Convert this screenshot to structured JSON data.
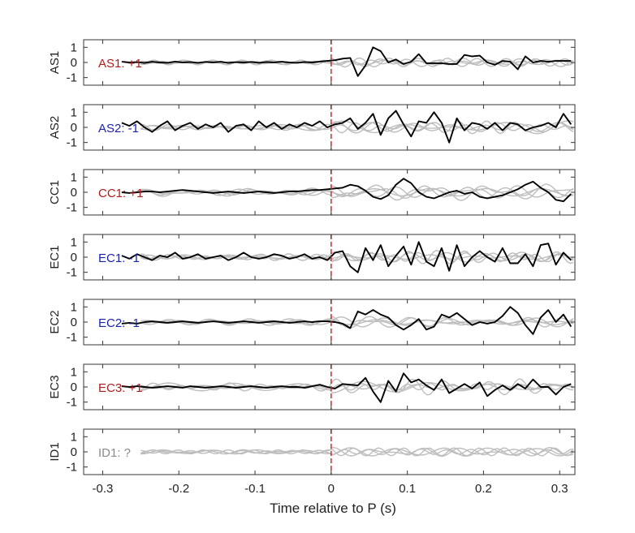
{
  "chart_data": {
    "type": "line",
    "xlabel": "Time relative to P (s)",
    "xlim": [
      -0.325,
      0.32
    ],
    "xticks": [
      -0.3,
      -0.2,
      -0.1,
      0,
      0.1,
      0.2,
      0.3
    ],
    "xtick_labels": [
      "-0.3",
      "-0.2",
      "-0.1",
      "0",
      "0.1",
      "0.2",
      "0.3"
    ],
    "ylim": [
      -1.5,
      1.5
    ],
    "yticks": [
      -1,
      0,
      1
    ],
    "ytick_labels": [
      "-1",
      "0",
      "1"
    ],
    "vline_x": 0,
    "colors": {
      "highlight": "#000000",
      "background": "#bdbdbd",
      "vline": "#d62728",
      "positive": "#b11b1b",
      "negative": "#1a22b3",
      "unknown": "#8a8a8a"
    },
    "panels": [
      {
        "ylabel": "AS1",
        "tag": "AS1: +1",
        "tag_color": "#b11b1b",
        "has_trace": true,
        "trace_x": [
          -0.275,
          -0.265,
          -0.255,
          -0.245,
          -0.235,
          -0.225,
          -0.215,
          -0.205,
          -0.195,
          -0.185,
          -0.175,
          -0.165,
          -0.155,
          -0.145,
          -0.135,
          -0.125,
          -0.115,
          -0.105,
          -0.095,
          -0.085,
          -0.075,
          -0.065,
          -0.055,
          -0.045,
          -0.035,
          -0.025,
          -0.015,
          -0.005,
          0.005,
          0.015,
          0.025,
          0.035,
          0.045,
          0.055,
          0.065,
          0.075,
          0.085,
          0.095,
          0.105,
          0.115,
          0.125,
          0.135,
          0.145,
          0.155,
          0.165,
          0.175,
          0.185,
          0.195,
          0.205,
          0.215,
          0.225,
          0.235,
          0.245,
          0.255,
          0.265,
          0.275,
          0.285,
          0.295,
          0.305,
          0.315
        ],
        "trace_y": [
          0.05,
          0.0,
          0.02,
          -0.03,
          0.05,
          0.0,
          -0.02,
          0.06,
          0.0,
          0.03,
          -0.02,
          0.04,
          0.0,
          0.05,
          -0.03,
          0.02,
          0.0,
          0.04,
          -0.02,
          0.03,
          0.0,
          0.05,
          0.0,
          -0.02,
          0.03,
          0.0,
          0.06,
          0.1,
          0.15,
          0.25,
          0.3,
          -0.9,
          -0.2,
          1.0,
          0.75,
          0.0,
          0.2,
          -0.1,
          0.05,
          0.55,
          -0.05,
          -0.05,
          -0.05,
          -0.1,
          -0.1,
          0.5,
          0.4,
          0.45,
          0.0,
          -0.15,
          0.1,
          0.05,
          -0.45,
          0.4,
          0.0,
          0.1,
          0.05,
          0.1,
          0.1,
          0.1
        ]
      },
      {
        "ylabel": "AS2",
        "tag": "AS2: -1",
        "tag_color": "#1a22b3",
        "has_trace": true,
        "trace_x": [
          -0.275,
          -0.265,
          -0.255,
          -0.245,
          -0.235,
          -0.225,
          -0.215,
          -0.205,
          -0.195,
          -0.185,
          -0.175,
          -0.165,
          -0.155,
          -0.145,
          -0.135,
          -0.125,
          -0.115,
          -0.105,
          -0.095,
          -0.085,
          -0.075,
          -0.065,
          -0.055,
          -0.045,
          -0.035,
          -0.025,
          -0.015,
          -0.005,
          0.005,
          0.015,
          0.025,
          0.035,
          0.045,
          0.055,
          0.065,
          0.075,
          0.085,
          0.095,
          0.105,
          0.115,
          0.125,
          0.135,
          0.145,
          0.155,
          0.165,
          0.175,
          0.185,
          0.195,
          0.205,
          0.215,
          0.225,
          0.235,
          0.245,
          0.255,
          0.265,
          0.275,
          0.285,
          0.295,
          0.305,
          0.315
        ],
        "trace_y": [
          0.3,
          0.1,
          0.4,
          0.0,
          -0.3,
          0.1,
          0.4,
          -0.2,
          0.1,
          0.3,
          -0.1,
          0.2,
          0.0,
          0.3,
          -0.3,
          0.1,
          0.2,
          -0.2,
          0.4,
          0.0,
          0.3,
          -0.1,
          0.2,
          0.0,
          0.3,
          0.1,
          0.4,
          0.0,
          0.2,
          0.3,
          0.6,
          -0.1,
          0.3,
          0.9,
          -0.5,
          0.6,
          1.1,
          0.2,
          -0.6,
          0.4,
          0.3,
          1.0,
          0.3,
          -1.0,
          0.6,
          -0.2,
          0.3,
          0.2,
          -0.1,
          0.3,
          -0.2,
          0.3,
          0.2,
          -0.2,
          0.0,
          0.1,
          0.3,
          0.0,
          0.9,
          0.2
        ]
      },
      {
        "ylabel": "CC1",
        "tag": "CC1: +1",
        "tag_color": "#b11b1b",
        "has_trace": true,
        "trace_x": [
          -0.275,
          -0.265,
          -0.255,
          -0.245,
          -0.235,
          -0.225,
          -0.215,
          -0.205,
          -0.195,
          -0.185,
          -0.175,
          -0.165,
          -0.155,
          -0.145,
          -0.135,
          -0.125,
          -0.115,
          -0.105,
          -0.095,
          -0.085,
          -0.075,
          -0.065,
          -0.055,
          -0.045,
          -0.035,
          -0.025,
          -0.015,
          -0.005,
          0.005,
          0.015,
          0.025,
          0.035,
          0.045,
          0.055,
          0.065,
          0.075,
          0.085,
          0.095,
          0.105,
          0.115,
          0.125,
          0.135,
          0.145,
          0.155,
          0.165,
          0.175,
          0.185,
          0.195,
          0.205,
          0.215,
          0.225,
          0.235,
          0.245,
          0.255,
          0.265,
          0.275,
          0.285,
          0.295,
          0.305,
          0.315
        ],
        "trace_y": [
          0.0,
          -0.05,
          0.0,
          0.05,
          0.05,
          0.0,
          0.05,
          0.1,
          0.15,
          0.1,
          0.05,
          0.0,
          -0.05,
          0.0,
          0.05,
          0.0,
          -0.05,
          0.0,
          0.05,
          0.0,
          -0.05,
          0.0,
          0.05,
          0.05,
          0.1,
          0.15,
          0.15,
          0.2,
          0.25,
          0.3,
          0.5,
          0.4,
          0.1,
          -0.3,
          -0.45,
          -0.2,
          0.5,
          0.9,
          0.6,
          0.0,
          -0.3,
          -0.4,
          -0.2,
          0.0,
          0.1,
          -0.1,
          0.0,
          -0.3,
          -0.4,
          -0.3,
          -0.2,
          0.0,
          0.2,
          0.5,
          0.7,
          0.3,
          0.0,
          -0.5,
          -0.6,
          -0.1
        ]
      },
      {
        "ylabel": "EC1",
        "tag": "EC1: -1",
        "tag_color": "#1a22b3",
        "has_trace": true,
        "trace_x": [
          -0.275,
          -0.265,
          -0.255,
          -0.245,
          -0.235,
          -0.225,
          -0.215,
          -0.205,
          -0.195,
          -0.185,
          -0.175,
          -0.165,
          -0.155,
          -0.145,
          -0.135,
          -0.125,
          -0.115,
          -0.105,
          -0.095,
          -0.085,
          -0.075,
          -0.065,
          -0.055,
          -0.045,
          -0.035,
          -0.025,
          -0.015,
          -0.005,
          0.005,
          0.015,
          0.025,
          0.035,
          0.045,
          0.055,
          0.065,
          0.075,
          0.085,
          0.095,
          0.105,
          0.115,
          0.125,
          0.135,
          0.145,
          0.155,
          0.165,
          0.175,
          0.185,
          0.195,
          0.205,
          0.215,
          0.225,
          0.235,
          0.245,
          0.255,
          0.265,
          0.275,
          0.285,
          0.295,
          0.305,
          0.315
        ],
        "trace_y": [
          0.1,
          -0.1,
          0.2,
          0.0,
          -0.2,
          0.1,
          0.0,
          0.3,
          -0.1,
          0.0,
          0.2,
          -0.1,
          0.0,
          0.1,
          -0.2,
          0.0,
          0.3,
          0.0,
          -0.1,
          0.0,
          0.2,
          0.1,
          -0.1,
          0.0,
          0.2,
          -0.1,
          0.0,
          -0.2,
          0.3,
          0.4,
          -0.6,
          -1.0,
          0.6,
          -0.2,
          0.8,
          -0.6,
          0.1,
          0.7,
          -0.5,
          1.0,
          -0.3,
          -0.6,
          0.6,
          -0.9,
          0.8,
          -0.6,
          0.0,
          0.4,
          0.0,
          -0.3,
          0.6,
          -0.4,
          -0.4,
          0.2,
          -0.6,
          0.8,
          0.9,
          -0.5,
          0.3,
          -0.2
        ]
      },
      {
        "ylabel": "EC2",
        "tag": "EC2: -1",
        "tag_color": "#1a22b3",
        "has_trace": true,
        "trace_x": [
          -0.275,
          -0.265,
          -0.255,
          -0.245,
          -0.235,
          -0.225,
          -0.215,
          -0.205,
          -0.195,
          -0.185,
          -0.175,
          -0.165,
          -0.155,
          -0.145,
          -0.135,
          -0.125,
          -0.115,
          -0.105,
          -0.095,
          -0.085,
          -0.075,
          -0.065,
          -0.055,
          -0.045,
          -0.035,
          -0.025,
          -0.015,
          -0.005,
          0.005,
          0.015,
          0.025,
          0.035,
          0.045,
          0.055,
          0.065,
          0.075,
          0.085,
          0.095,
          0.105,
          0.115,
          0.125,
          0.135,
          0.145,
          0.155,
          0.165,
          0.175,
          0.185,
          0.195,
          0.205,
          0.215,
          0.225,
          0.235,
          0.245,
          0.255,
          0.265,
          0.275,
          0.285,
          0.295,
          0.305,
          0.315
        ],
        "trace_y": [
          -0.1,
          -0.05,
          -0.1,
          0.0,
          0.05,
          0.0,
          -0.05,
          0.0,
          0.05,
          0.0,
          -0.05,
          0.0,
          0.05,
          0.0,
          -0.05,
          0.0,
          0.05,
          0.0,
          -0.05,
          0.0,
          0.05,
          0.0,
          -0.05,
          0.0,
          0.05,
          0.0,
          0.05,
          0.05,
          0.0,
          -0.1,
          -0.4,
          0.7,
          0.5,
          0.8,
          0.5,
          0.3,
          -0.2,
          -0.5,
          -0.2,
          0.2,
          -0.5,
          -0.3,
          0.5,
          0.3,
          0.6,
          0.2,
          -0.2,
          0.0,
          -0.1,
          0.0,
          0.4,
          1.0,
          0.6,
          -0.2,
          -0.8,
          0.3,
          0.8,
          0.0,
          0.5,
          -0.3
        ]
      },
      {
        "ylabel": "EC3",
        "tag": "EC3: +1",
        "tag_color": "#b11b1b",
        "has_trace": true,
        "trace_x": [
          -0.275,
          -0.265,
          -0.255,
          -0.245,
          -0.235,
          -0.225,
          -0.215,
          -0.205,
          -0.195,
          -0.185,
          -0.175,
          -0.165,
          -0.155,
          -0.145,
          -0.135,
          -0.125,
          -0.115,
          -0.105,
          -0.095,
          -0.085,
          -0.075,
          -0.065,
          -0.055,
          -0.045,
          -0.035,
          -0.025,
          -0.015,
          -0.005,
          0.005,
          0.015,
          0.025,
          0.035,
          0.045,
          0.055,
          0.065,
          0.075,
          0.085,
          0.095,
          0.105,
          0.115,
          0.125,
          0.135,
          0.145,
          0.155,
          0.165,
          0.175,
          0.185,
          0.195,
          0.205,
          0.215,
          0.225,
          0.235,
          0.245,
          0.255,
          0.265,
          0.275,
          0.285,
          0.295,
          0.305,
          0.315
        ],
        "trace_y": [
          0.05,
          0.0,
          0.05,
          0.0,
          -0.05,
          0.0,
          0.05,
          0.0,
          -0.05,
          0.05,
          0.0,
          -0.05,
          0.0,
          0.05,
          0.0,
          -0.05,
          0.0,
          0.05,
          0.0,
          -0.05,
          0.0,
          0.05,
          0.0,
          0.0,
          -0.05,
          0.05,
          0.15,
          0.0,
          -0.1,
          0.2,
          0.15,
          0.1,
          0.6,
          -0.3,
          -1.0,
          0.4,
          -0.3,
          0.9,
          0.3,
          0.5,
          0.1,
          -0.2,
          0.5,
          -0.4,
          -0.1,
          0.2,
          -0.1,
          0.3,
          -0.6,
          -0.2,
          0.1,
          -0.2,
          0.2,
          -0.1,
          0.5,
          0.0,
          0.0,
          -0.5,
          0.0,
          0.2
        ]
      },
      {
        "ylabel": "ID1",
        "tag": "ID1: ?",
        "tag_color": "#8a8a8a",
        "has_trace": false,
        "trace_x": [],
        "trace_y": []
      }
    ]
  }
}
